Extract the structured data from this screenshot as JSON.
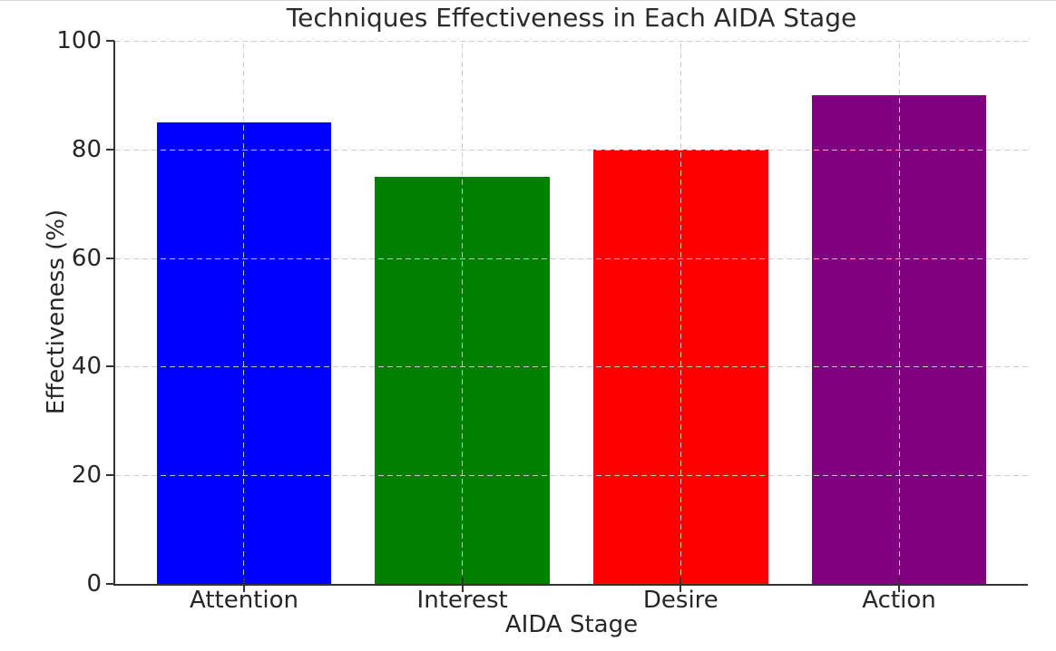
{
  "chart_data": {
    "type": "bar",
    "title": "Techniques Effectiveness in Each AIDA Stage",
    "xlabel": "AIDA Stage",
    "ylabel": "Effectiveness (%)",
    "categories": [
      "Attention",
      "Interest",
      "Desire",
      "Action"
    ],
    "values": [
      85,
      75,
      80,
      90
    ],
    "bar_colors": [
      "#0000ff",
      "#008000",
      "#ff0000",
      "#800080"
    ],
    "ylim": [
      0,
      100
    ],
    "yticks": [
      0,
      20,
      40,
      60,
      80,
      100
    ],
    "grid": {
      "on": true,
      "style": "dashed",
      "color": "#cbcbcb",
      "axes": "both"
    },
    "legend": "none",
    "text_color": "#262626",
    "spine_color": "#333333",
    "background_color": "#ffffff"
  }
}
